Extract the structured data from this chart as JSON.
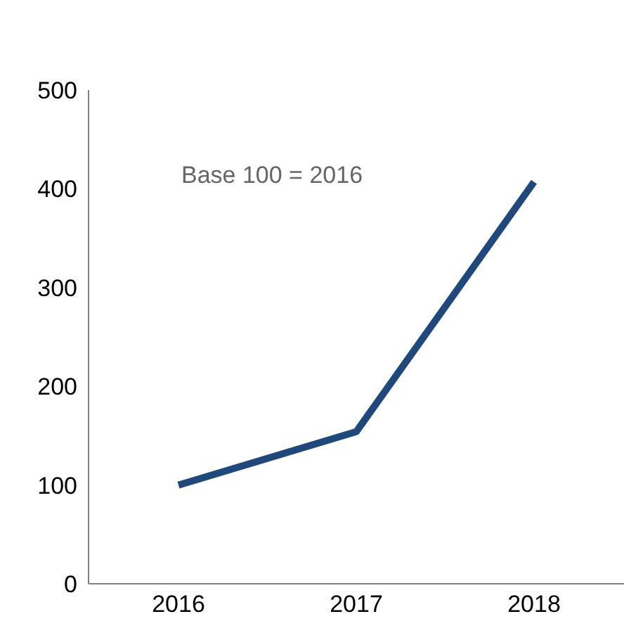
{
  "chart_data": {
    "type": "line",
    "categories": [
      "2016",
      "2017",
      "2018"
    ],
    "series": [
      {
        "color": "#1f497d",
        "values": [
          100,
          154,
          407
        ]
      }
    ],
    "ylim": [
      0,
      500
    ],
    "yticks": [
      0,
      100,
      200,
      300,
      400,
      500
    ],
    "grid": false,
    "marker": "none",
    "line_style": "solid",
    "annotations": [
      "Base 100 = 2016"
    ]
  }
}
